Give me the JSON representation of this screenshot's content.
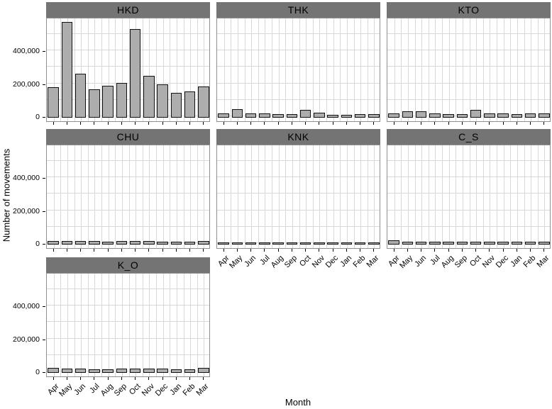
{
  "chart_data": {
    "type": "bar",
    "title": "",
    "xlabel": "Month",
    "ylabel": "Number of movements",
    "categories": [
      "Apr",
      "May",
      "Jun",
      "Jul",
      "Aug",
      "Sep",
      "Oct",
      "Nov",
      "Dec",
      "Jan",
      "Feb",
      "Mar"
    ],
    "ylim": [
      0,
      600000
    ],
    "grid": "on",
    "legend": "none",
    "yticks": [
      {
        "value": 0,
        "label": "0"
      },
      {
        "value": 200000,
        "label": "200,000"
      },
      {
        "value": 400000,
        "label": "400,000"
      }
    ],
    "yticks_minor": [
      100000,
      300000,
      500000
    ],
    "facets": [
      {
        "name": "HKD",
        "values": [
          175000,
          570000,
          255000,
          162000,
          184000,
          200000,
          525000,
          245000,
          190000,
          141000,
          150000,
          180000
        ]
      },
      {
        "name": "THK",
        "values": [
          13000,
          40000,
          13000,
          16000,
          9000,
          12000,
          35000,
          19000,
          7000,
          6000,
          9000,
          10000
        ]
      },
      {
        "name": "KTO",
        "values": [
          13000,
          30000,
          27000,
          16000,
          9000,
          11000,
          38000,
          14000,
          15000,
          10000,
          14000,
          15000
        ]
      },
      {
        "name": "CHU",
        "values": [
          10000,
          10000,
          11000,
          9000,
          8000,
          9000,
          10000,
          10000,
          7000,
          8000,
          7000,
          10000
        ]
      },
      {
        "name": "KNK",
        "values": [
          3000,
          3000,
          3000,
          3000,
          2000,
          2000,
          3000,
          3000,
          2000,
          2000,
          2000,
          3000
        ]
      },
      {
        "name": "C_S",
        "values": [
          14000,
          7000,
          7000,
          7000,
          6000,
          7000,
          8000,
          8000,
          5000,
          5000,
          5000,
          7000
        ]
      },
      {
        "name": "K_O",
        "values": [
          18000,
          13000,
          13000,
          12000,
          12000,
          14000,
          13000,
          15000,
          13000,
          12000,
          12000,
          18000
        ]
      }
    ],
    "colors": {
      "bar_fill": "#adadad",
      "bar_stroke": "#111111",
      "strip_bg": "#747474",
      "strip_text": "#000000",
      "gridline": "#d8d8d8",
      "panel_border": "#8f8f8f",
      "panel_bg": "#ffffff"
    }
  }
}
